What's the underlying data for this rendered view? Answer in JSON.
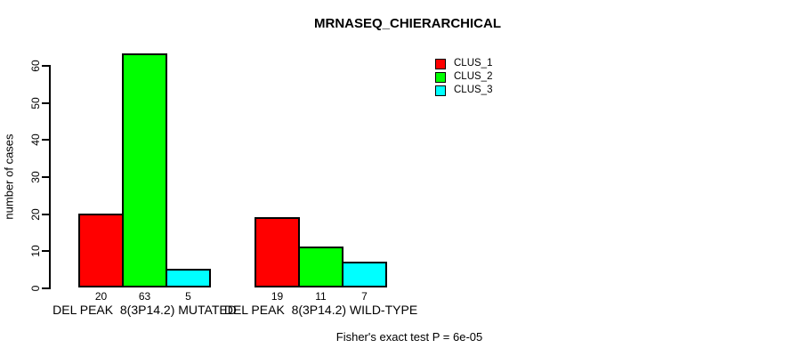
{
  "chart_data": {
    "type": "bar",
    "title": "MRNASEQ_CHIERARCHICAL",
    "xlabel": "",
    "ylabel": "number of cases",
    "ylim": [
      0,
      60
    ],
    "yticks": [
      0,
      10,
      20,
      30,
      40,
      50,
      60
    ],
    "grid": false,
    "legend_position": "top-right",
    "bar_value_labels": true,
    "categories": [
      "DEL PEAK  8(3P14.2) MUTATED",
      "DEL PEAK  8(3P14.2) WILD-TYPE"
    ],
    "series": [
      {
        "name": "CLUS_1",
        "color": "#ff0000",
        "values": [
          20,
          19
        ]
      },
      {
        "name": "CLUS_2",
        "color": "#00ff00",
        "values": [
          63,
          11
        ]
      },
      {
        "name": "CLUS_3",
        "color": "#00ffff",
        "values": [
          5,
          7
        ]
      }
    ]
  },
  "footer": {
    "note": "Fisher's exact test P = 6e-05"
  },
  "colors": {
    "background": "#ffffff",
    "axis": "#000000",
    "text": "#000000"
  }
}
